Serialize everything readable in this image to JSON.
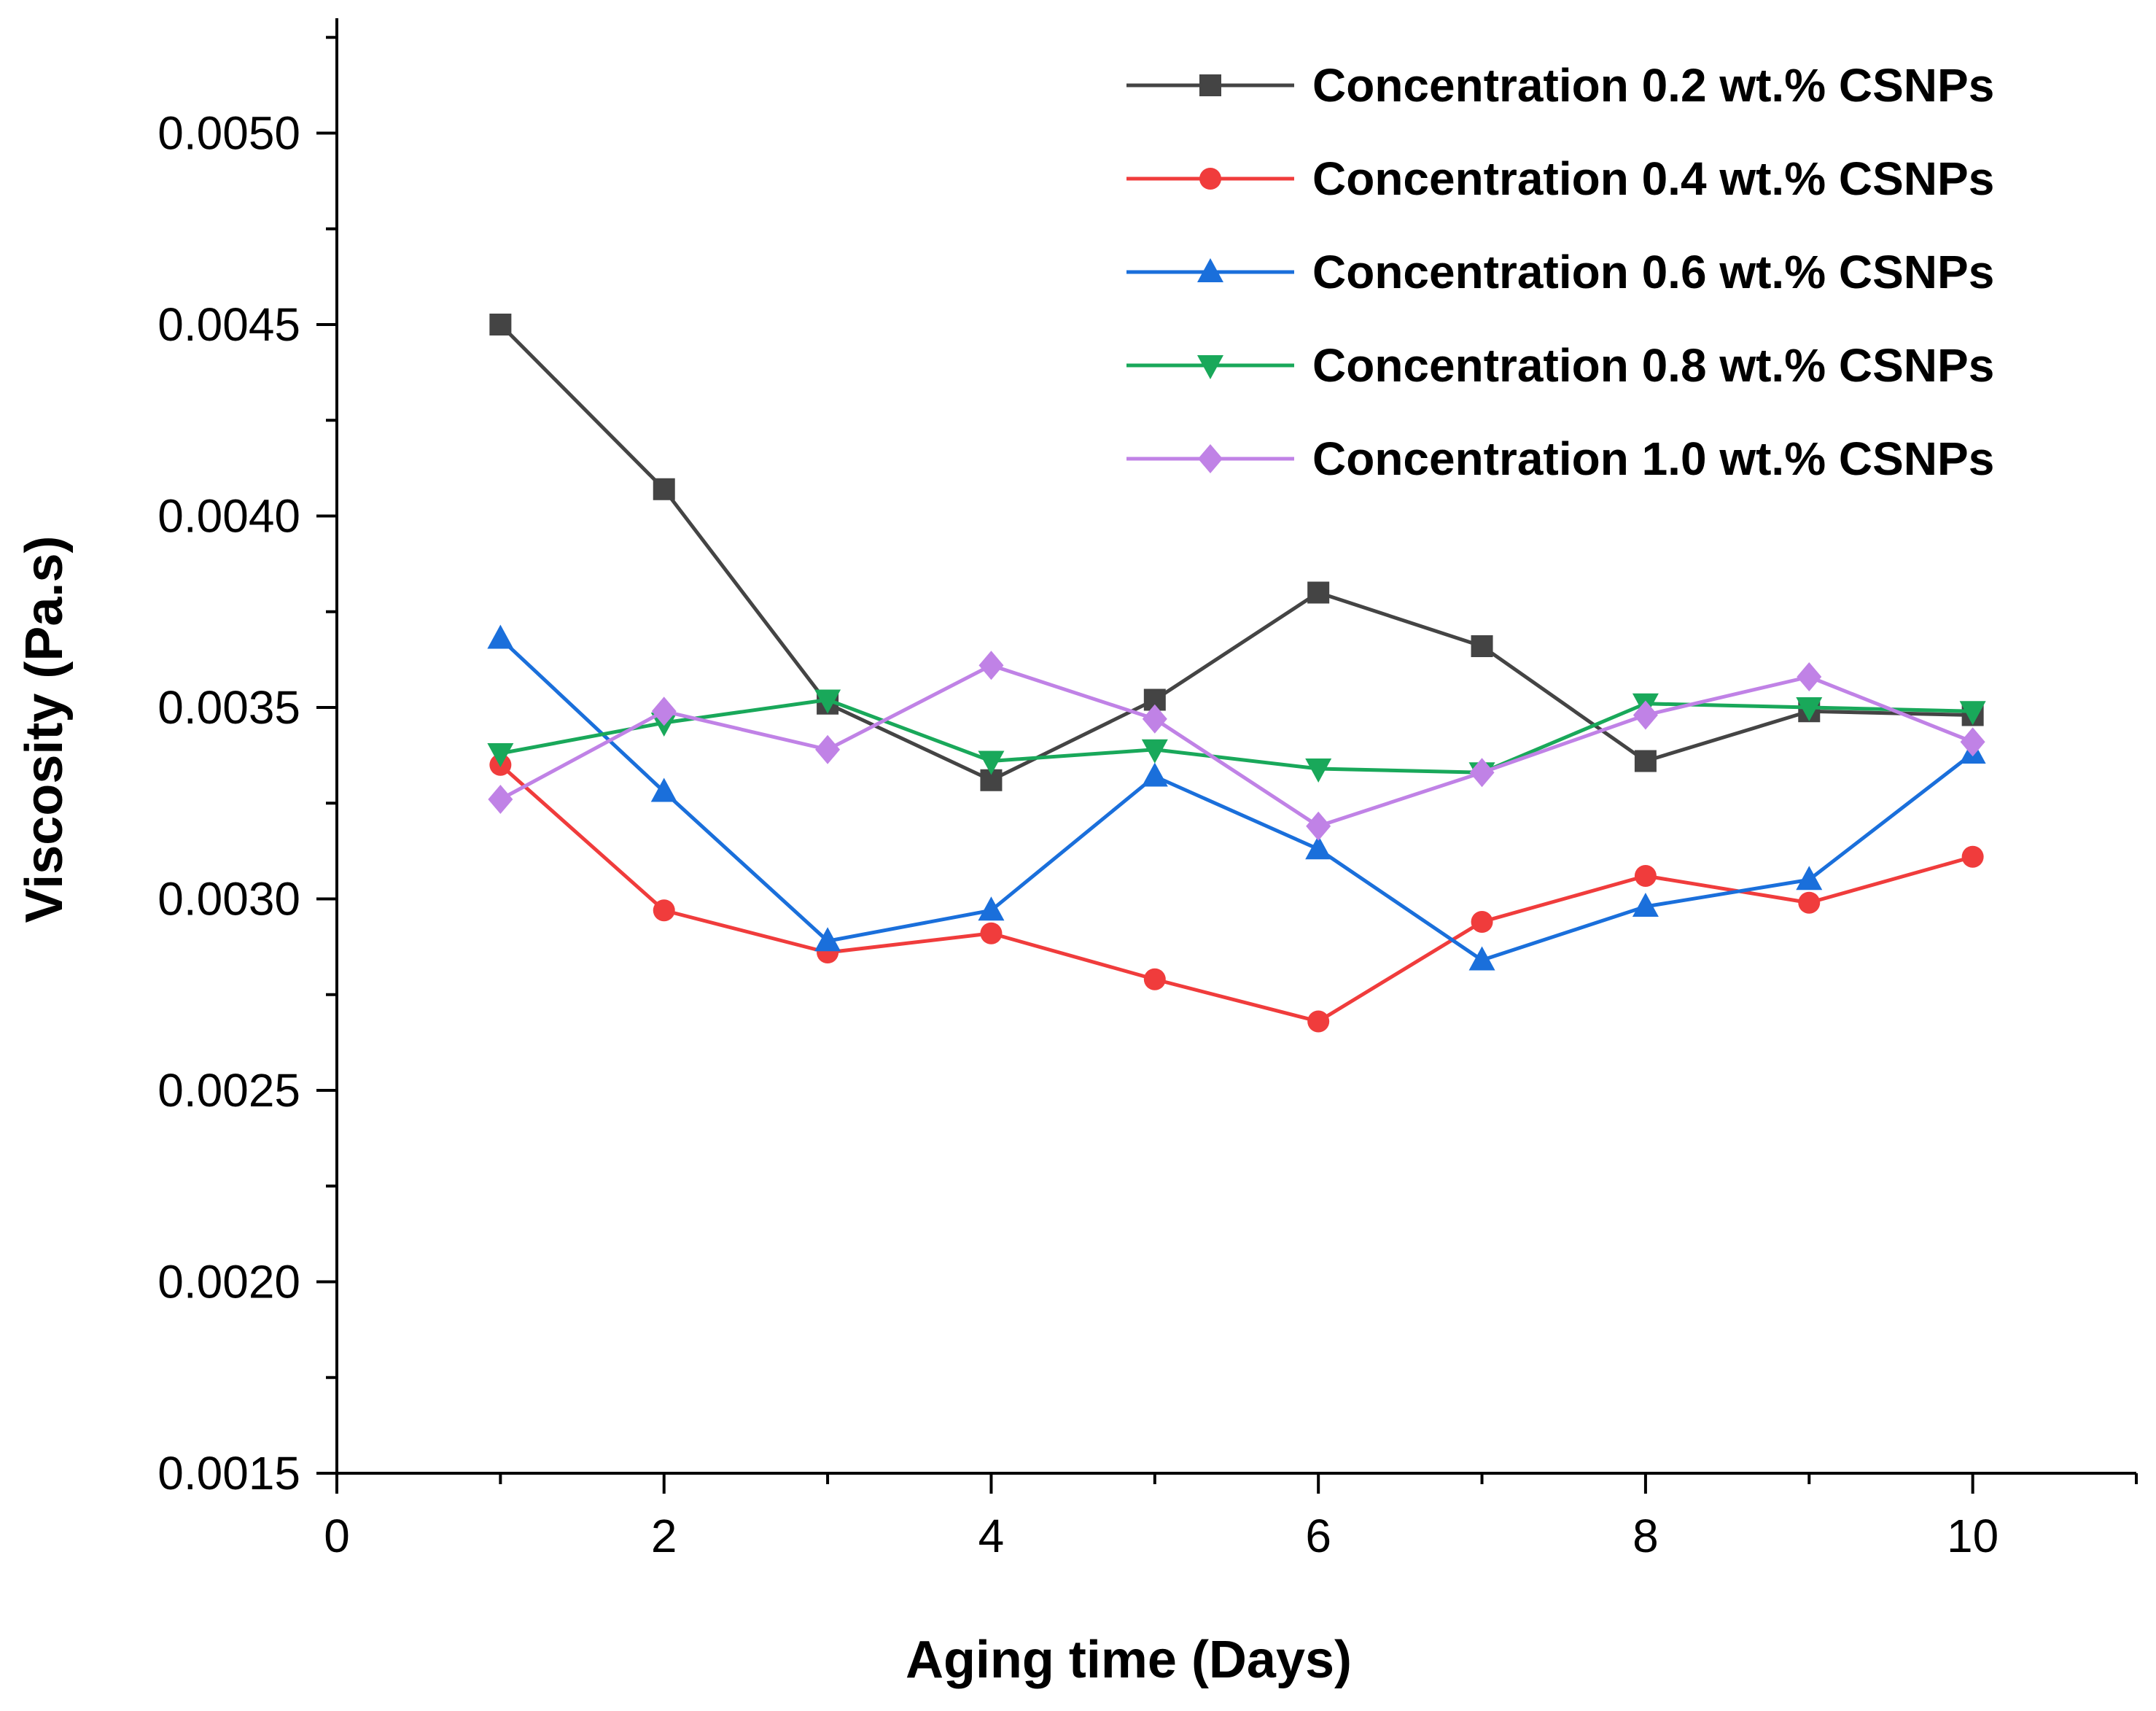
{
  "chart_data": {
    "type": "line",
    "title": "",
    "xlabel": "Aging time (Days)",
    "ylabel": "Viscosity (Pa.s)",
    "xlim": [
      0,
      11
    ],
    "ylim": [
      0.0015,
      0.0053
    ],
    "xticks": [
      0,
      2,
      4,
      6,
      8,
      10
    ],
    "xtick_labels": [
      "0",
      "2",
      "4",
      "6",
      "8",
      "10"
    ],
    "yticks": [
      0.0015,
      0.002,
      0.0025,
      0.003,
      0.0035,
      0.004,
      0.0045,
      0.005
    ],
    "ytick_labels": [
      "0.0015",
      "0.0020",
      "0.0025",
      "0.0030",
      "0.0035",
      "0.0040",
      "0.0045",
      "0.0050"
    ],
    "grid": false,
    "legend_position": "top-right",
    "x": [
      1,
      2,
      3,
      4,
      5,
      6,
      7,
      8,
      9,
      10
    ],
    "series": [
      {
        "name": "Concentration 0.2 wt.% CSNPs",
        "color": "#444444",
        "marker": "square",
        "values": [
          0.0045,
          0.00407,
          0.00351,
          0.00331,
          0.00352,
          0.0038,
          0.00366,
          0.00336,
          0.00349,
          0.00348
        ]
      },
      {
        "name": "Concentration 0.4 wt.% CSNPs",
        "color": "#f03c3c",
        "marker": "circle",
        "values": [
          0.00335,
          0.00297,
          0.00286,
          0.00291,
          0.00279,
          0.00268,
          0.00294,
          0.00306,
          0.00299,
          0.00311
        ]
      },
      {
        "name": "Concentration 0.6 wt.% CSNPs",
        "color": "#1a6fdb",
        "marker": "triangle-up",
        "values": [
          0.00368,
          0.00328,
          0.00289,
          0.00297,
          0.00332,
          0.00313,
          0.00284,
          0.00298,
          0.00305,
          0.00338
        ]
      },
      {
        "name": "Concentration 0.8 wt.% CSNPs",
        "color": "#19a85a",
        "marker": "triangle-down",
        "values": [
          0.00338,
          0.00346,
          0.00352,
          0.00336,
          0.00339,
          0.00334,
          0.00333,
          0.00351,
          0.0035,
          0.00349
        ]
      },
      {
        "name": "Concentration 1.0 wt.% CSNPs",
        "color": "#c082e6",
        "marker": "diamond",
        "values": [
          0.00326,
          0.00349,
          0.00339,
          0.00361,
          0.00347,
          0.00319,
          0.00333,
          0.00348,
          0.00358,
          0.00341
        ]
      }
    ]
  }
}
